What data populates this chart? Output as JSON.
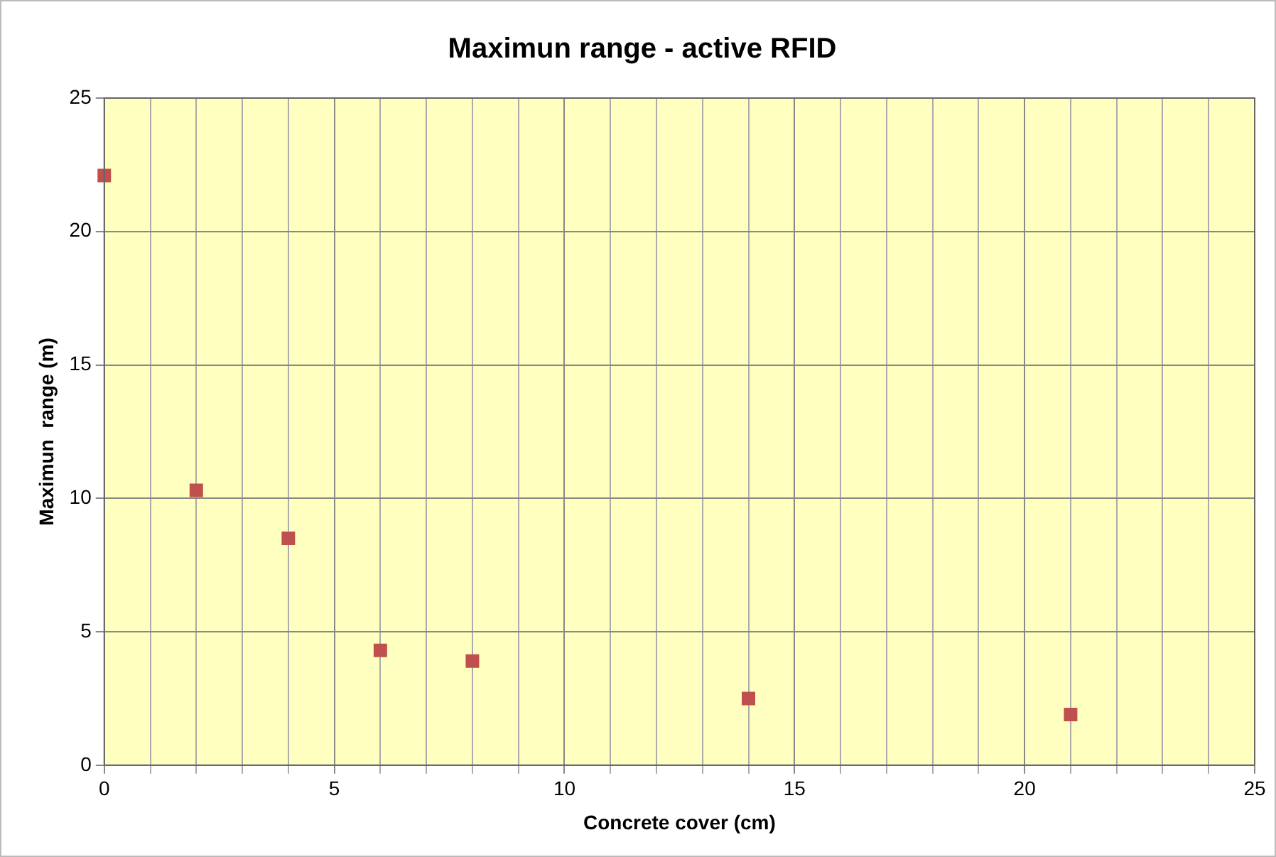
{
  "chart_data": {
    "type": "scatter",
    "title": "Maximun range - active RFID",
    "xlabel": "Concrete cover (cm)",
    "ylabel": "Maximun  range (m)",
    "x": [
      0,
      2,
      4,
      6,
      8,
      14,
      21
    ],
    "series": [
      {
        "color": "#c0504d",
        "values": [
          22.1,
          10.3,
          8.5,
          4.3,
          3.9,
          2.5,
          1.9
        ]
      }
    ],
    "xlim": [
      0,
      25
    ],
    "xticks": [
      0,
      {
        "value": 1,
        "label": null
      },
      {
        "value": 2,
        "label": null
      },
      {
        "value": 3,
        "label": null
      },
      {
        "value": 4,
        "label": null
      },
      5,
      {
        "value": 6,
        "label": null
      },
      {
        "value": 7,
        "label": null
      },
      {
        "value": 8,
        "label": null
      },
      {
        "value": 9,
        "label": null
      },
      10,
      {
        "value": 11,
        "label": null
      },
      {
        "value": 12,
        "label": null
      },
      {
        "value": 13,
        "label": null
      },
      {
        "value": 14,
        "label": null
      },
      15,
      {
        "value": 16,
        "label": null
      },
      {
        "value": 17,
        "label": null
      },
      {
        "value": 18,
        "label": null
      },
      {
        "value": 19,
        "label": null
      },
      20,
      {
        "value": 21,
        "label": null
      },
      {
        "value": 22,
        "label": null
      },
      {
        "value": 23,
        "label": null
      },
      {
        "value": 24,
        "label": null
      },
      25
    ],
    "ylim": [
      0,
      25
    ],
    "yticks": [
      0,
      5,
      10,
      15,
      20,
      25
    ],
    "grid": true,
    "legend": false,
    "marker": "square"
  }
}
